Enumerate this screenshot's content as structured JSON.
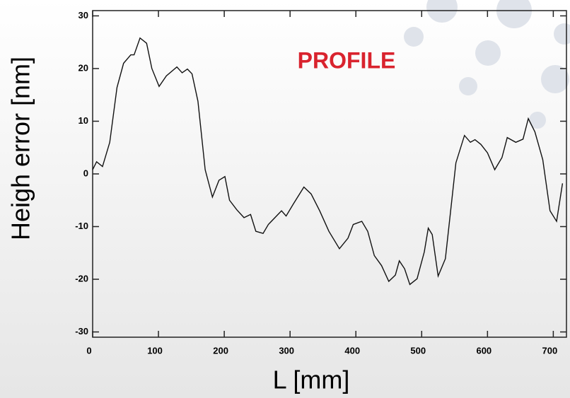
{
  "chart_data": {
    "type": "line",
    "title": "PROFILE",
    "x_label": "L [mm]",
    "y_label": "Heigh error [nm]",
    "x": [
      0,
      6,
      15,
      26,
      37,
      47,
      58,
      63,
      72,
      82,
      90,
      101,
      112,
      128,
      136,
      144,
      151,
      160,
      171,
      182,
      192,
      201,
      208,
      219,
      230,
      240,
      248,
      259,
      267,
      287,
      294,
      305,
      321,
      332,
      345,
      359,
      375,
      388,
      396,
      409,
      418,
      428,
      439,
      450,
      460,
      466,
      474,
      482,
      493,
      504,
      510,
      516,
      525,
      536,
      552,
      565,
      574,
      581,
      590,
      600,
      611,
      622,
      630,
      643,
      654,
      662,
      672,
      684,
      695,
      705,
      714
    ],
    "series": [
      {
        "color": "#111111",
        "values": [
          0.8,
          2.3,
          1.4,
          6,
          16.4,
          21,
          22.6,
          22.6,
          25.8,
          24.8,
          20,
          16.6,
          18.6,
          20.3,
          19.2,
          19.9,
          19,
          13.8,
          0.8,
          -4.4,
          -1.2,
          -0.5,
          -5,
          -6.8,
          -8.3,
          -7.7,
          -10.9,
          -11.3,
          -9.6,
          -7,
          -8,
          -5.7,
          -2.5,
          -3.8,
          -7,
          -10.9,
          -14.2,
          -12.2,
          -9.6,
          -9,
          -10.9,
          -15.5,
          -17.4,
          -20.4,
          -19.2,
          -16.5,
          -18,
          -21,
          -19.9,
          -14.8,
          -10.3,
          -11.5,
          -19.4,
          -16.1,
          2.1,
          7.3,
          6,
          6.5,
          5.6,
          4,
          0.8,
          3.1,
          6.9,
          6,
          6.6,
          10.5,
          8,
          2.7,
          -7,
          -9,
          -1.8
        ]
      }
    ],
    "xlim": [
      0,
      720
    ],
    "xticks": [
      0,
      100,
      200,
      300,
      400,
      500,
      600,
      700
    ],
    "ylim": [
      -31,
      31
    ],
    "yticks": [
      -30,
      -20,
      -10,
      0,
      10,
      20,
      30
    ]
  }
}
